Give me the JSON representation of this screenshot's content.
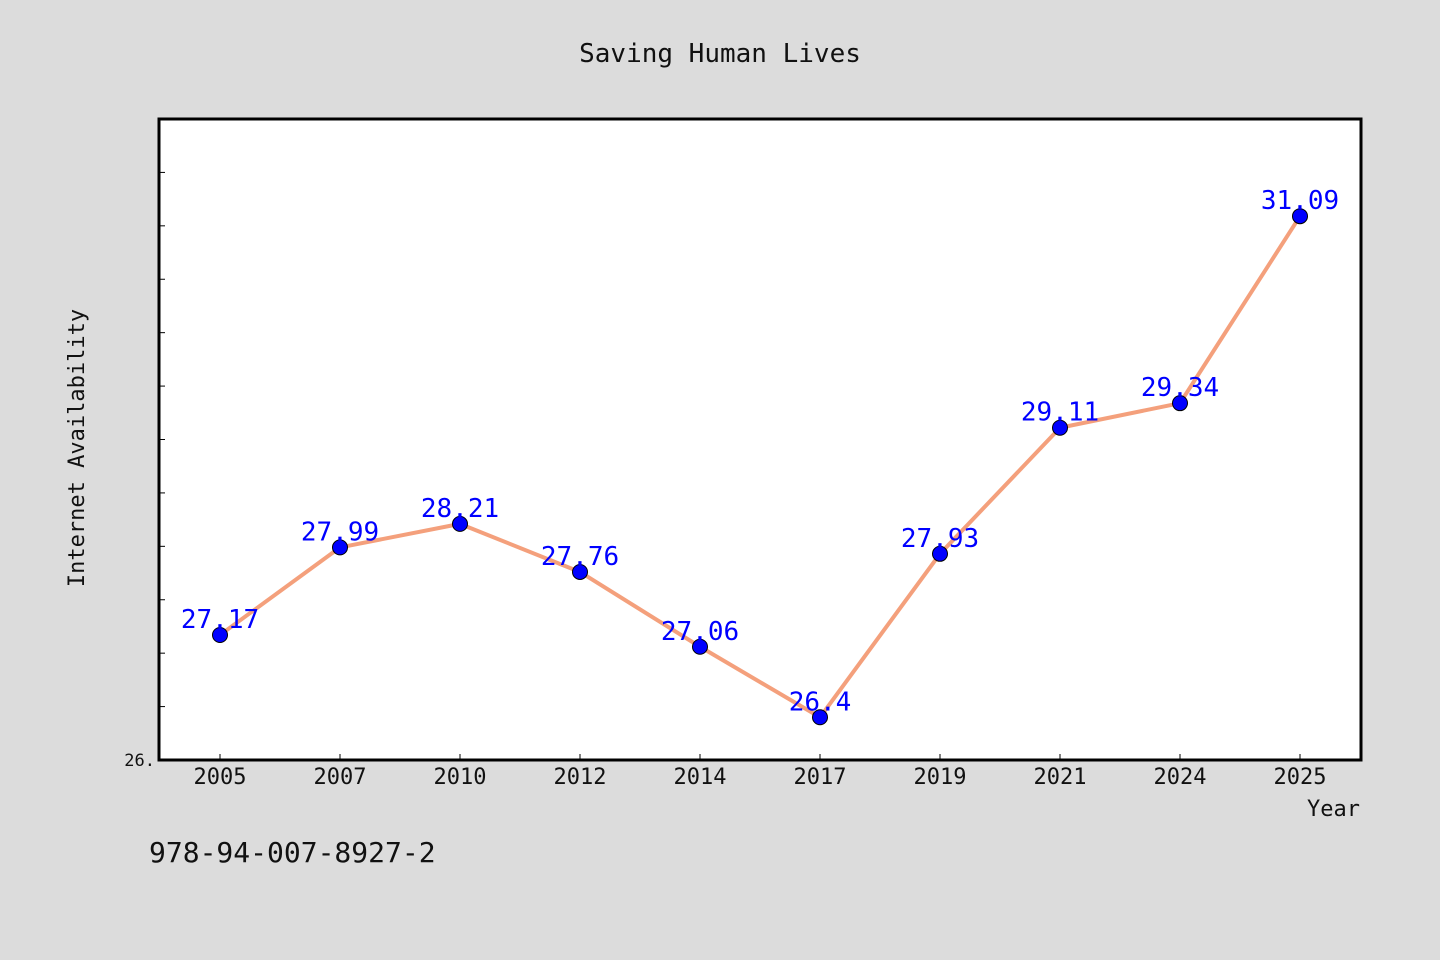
{
  "footer_text": "978-94-007-8927-2",
  "colors": {
    "background": "#dcdcdc",
    "plot_background": "#ffffff",
    "line": "#f4a07c",
    "marker": "#0000ff",
    "data_label": "#0000ff"
  },
  "chart_data": {
    "type": "line",
    "title": "Saving Human Lives",
    "xlabel": "Year",
    "ylabel": "Internet Availability",
    "categories": [
      "2005",
      "2007",
      "2010",
      "2012",
      "2014",
      "2017",
      "2019",
      "2021",
      "2024",
      "2025"
    ],
    "series": [
      {
        "values": [
          27.17,
          27.99,
          28.21,
          27.76,
          27.06,
          26.4,
          27.93,
          29.11,
          29.34,
          31.09
        ]
      }
    ],
    "data_labels": [
      "27.17",
      "27.99",
      "28.21",
      "27.76",
      "27.06",
      "26.4",
      "27.93",
      "29.11",
      "29.34",
      "31.09"
    ],
    "ylim": [
      26,
      32
    ],
    "y_tick_labels": [
      {
        "value": 26,
        "label": "26."
      }
    ],
    "y_minor_step": 0.5,
    "grid": false,
    "legend": "none"
  }
}
